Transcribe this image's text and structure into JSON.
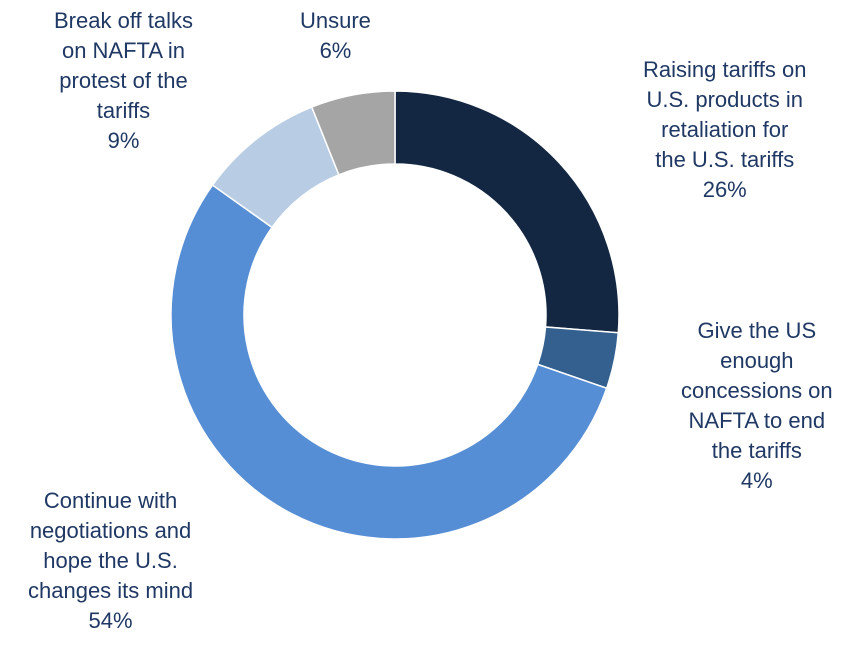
{
  "chart_data": {
    "type": "pie",
    "style": "donut",
    "slices": [
      {
        "name": "Raising tariffs on U.S. products in retaliation for the U.S. tariffs",
        "label_lines": [
          "Raising tariffs on",
          "U.S. products in",
          "retaliation for",
          "the U.S. tariffs"
        ],
        "value": 26,
        "value_label": "26%",
        "color": "#132743"
      },
      {
        "name": "Give the US enough concessions on NAFTA to end the tariffs",
        "label_lines": [
          "Give the US",
          "enough",
          "concessions on",
          "NAFTA to end",
          "the tariffs"
        ],
        "value": 4,
        "value_label": "4%",
        "color": "#34608f"
      },
      {
        "name": "Continue with negotiations and hope the U.S. changes its mind",
        "label_lines": [
          "Continue with",
          "negotiations and",
          "hope the U.S.",
          "changes its mind"
        ],
        "value": 54,
        "value_label": "54%",
        "color": "#558ed5"
      },
      {
        "name": "Break off talks on NAFTA in protest of the tariffs",
        "label_lines": [
          "Break off talks",
          "on NAFTA in",
          "protest of the",
          "tariffs"
        ],
        "value": 9,
        "value_label": "9%",
        "color": "#b8cce4"
      },
      {
        "name": "Unsure",
        "label_lines": [
          "Unsure"
        ],
        "value": 6,
        "value_label": "6%",
        "color": "#a5a5a5"
      }
    ],
    "label_color": "#1f3864",
    "start_angle": "12 o'clock",
    "direction": "clockwise",
    "legend": "none"
  }
}
